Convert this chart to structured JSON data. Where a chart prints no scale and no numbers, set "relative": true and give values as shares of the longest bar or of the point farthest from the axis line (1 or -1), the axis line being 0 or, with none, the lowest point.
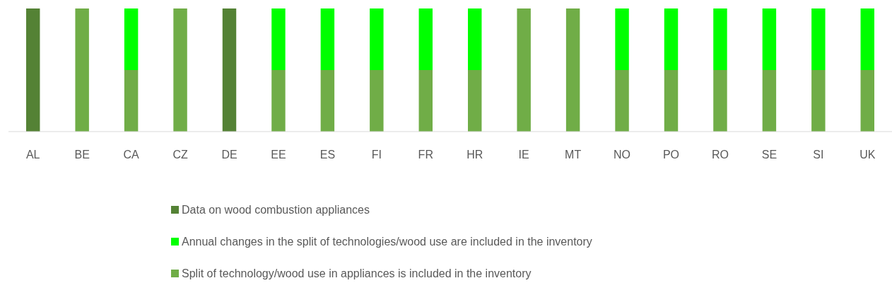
{
  "chart_data": {
    "type": "bar",
    "stacked": true,
    "relative": true,
    "legend": "bottom",
    "categories": [
      "AL",
      "BE",
      "CA",
      "CZ",
      "DE",
      "EE",
      "ES",
      "FI",
      "FR",
      "HR",
      "IE",
      "MT",
      "NO",
      "PO",
      "RO",
      "SE",
      "SI",
      "UK"
    ],
    "series": [
      {
        "name": "Split of technology/wood use in appliances is included in the inventory",
        "color": "#70ad47",
        "values": [
          null,
          1,
          0.5,
          1,
          null,
          0.5,
          0.5,
          0.5,
          0.5,
          0.5,
          1,
          1,
          0.5,
          0.5,
          0.5,
          0.5,
          0.5,
          0.5
        ]
      },
      {
        "name": "Annual changes in the split of technologies/wood use are included in the inventory",
        "color": "#00ff00",
        "values": [
          null,
          null,
          0.5,
          null,
          null,
          0.5,
          0.5,
          0.5,
          0.5,
          0.5,
          null,
          null,
          0.5,
          0.5,
          0.5,
          0.5,
          0.5,
          0.5
        ]
      },
      {
        "name": "Data on wood combustion appliances",
        "color": "#548235",
        "values": [
          1,
          null,
          null,
          null,
          1,
          null,
          null,
          null,
          null,
          null,
          null,
          null,
          null,
          null,
          null,
          null,
          null,
          null
        ]
      }
    ]
  }
}
